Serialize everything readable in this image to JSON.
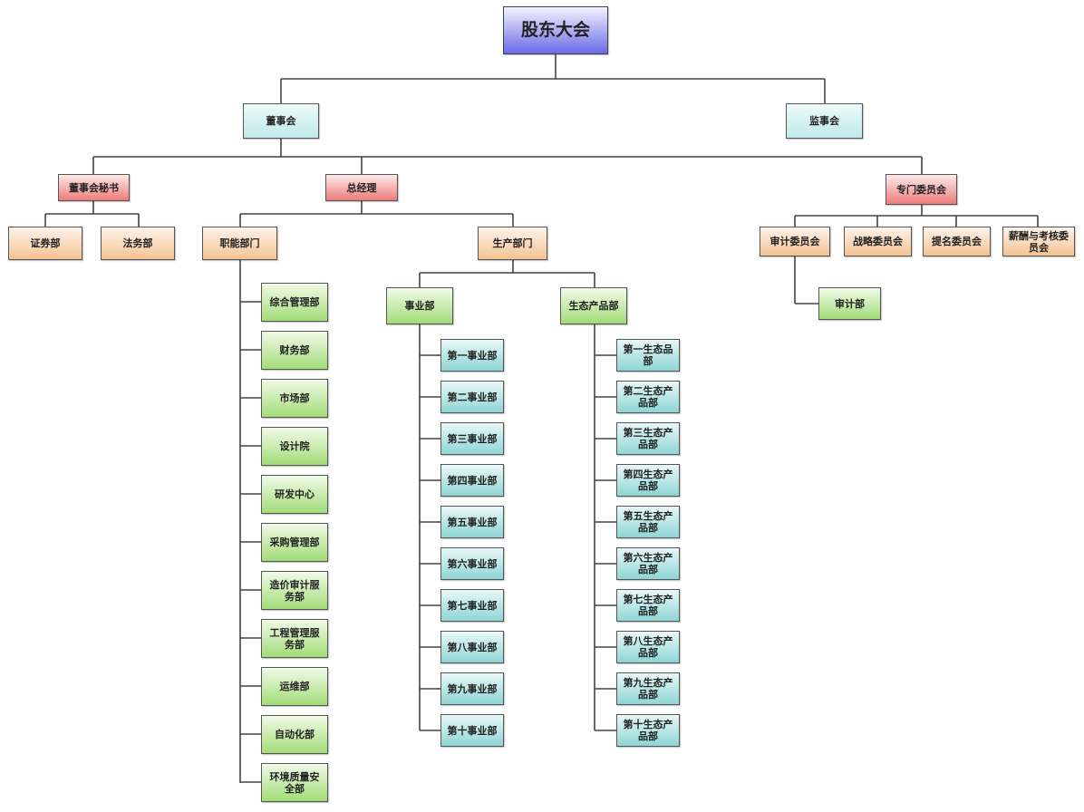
{
  "colors": {
    "line": "#444444",
    "blue": "#6a6ae6",
    "cyan": "#bfeaea",
    "red": "#ee7b7b",
    "orange": "#f4c292",
    "green": "#a2dc77",
    "teal": "#8fd6d6"
  },
  "nodes": [
    {
      "id": "gd",
      "label": "股东大会",
      "style": "blue"
    },
    {
      "id": "dsh",
      "label": "董事会",
      "parent": "gd",
      "style": "cyan"
    },
    {
      "id": "jsh",
      "label": "监事会",
      "parent": "gd",
      "style": "cyan"
    },
    {
      "id": "mish",
      "label": "董事会秘书",
      "parent": "dsh",
      "style": "red"
    },
    {
      "id": "zjl",
      "label": "总经理",
      "parent": "dsh",
      "style": "red"
    },
    {
      "id": "zmwyh",
      "label": "专门委员会",
      "parent": "dsh",
      "style": "red"
    },
    {
      "id": "zqb",
      "label": "证券部",
      "parent": "mish",
      "style": "orange"
    },
    {
      "id": "fwb",
      "label": "法务部",
      "parent": "mish",
      "style": "orange"
    },
    {
      "id": "znbm",
      "label": "职能部门",
      "parent": "zjl",
      "style": "orange"
    },
    {
      "id": "scbm",
      "label": "生产部门",
      "parent": "zjl",
      "style": "orange"
    },
    {
      "id": "sjwyh",
      "label": "审计委员会",
      "parent": "zmwyh",
      "style": "orange"
    },
    {
      "id": "zlwyh",
      "label": "战略委员会",
      "parent": "zmwyh",
      "style": "orange"
    },
    {
      "id": "tmwyh",
      "label": "提名委员会",
      "parent": "zmwyh",
      "style": "orange"
    },
    {
      "id": "xcwyh",
      "label": "薪酬与考核委员会",
      "parent": "zmwyh",
      "style": "orange"
    },
    {
      "id": "sjb",
      "label": "审计部",
      "parent": "sjwyh",
      "style": "green"
    },
    {
      "id": "syb",
      "label": "事业部",
      "parent": "scbm",
      "style": "green"
    },
    {
      "id": "stcpb",
      "label": "生态产品部",
      "parent": "scbm",
      "style": "green"
    }
  ],
  "functional_departments": [
    "综合管理部",
    "财务部",
    "市场部",
    "设计院",
    "研发中心",
    "采购管理部",
    "造价审计服务部",
    "工程管理服务部",
    "运维部",
    "自动化部",
    "环境质量安全部"
  ],
  "business_units": [
    "第一事业部",
    "第二事业部",
    "第三事业部",
    "第四事业部",
    "第五事业部",
    "第六事业部",
    "第七事业部",
    "第八事业部",
    "第九事业部",
    "第十事业部"
  ],
  "eco_product_units": [
    "第一生态品部",
    "第二生态产品部",
    "第三生态产品部",
    "第四生态产品部",
    "第五生态产品部",
    "第六生态产品部",
    "第七生态产品部",
    "第八生态产品部",
    "第九生态产品部",
    "第十生态产品部"
  ]
}
